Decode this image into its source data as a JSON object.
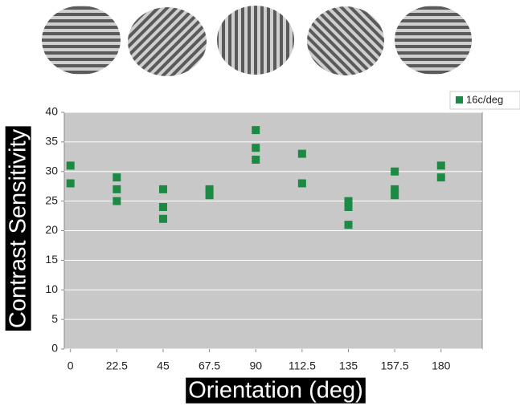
{
  "chart_data": {
    "type": "scatter",
    "xlabel": "Orientation (deg)",
    "ylabel": "Contrast Sensitivity",
    "series": [
      {
        "name": "16c/deg",
        "color": "#1c8a43",
        "x": [
          0,
          0,
          22.5,
          22.5,
          22.5,
          45,
          45,
          45,
          67.5,
          67.5,
          90,
          90,
          90,
          112.5,
          112.5,
          135,
          135,
          135,
          157.5,
          157.5,
          157.5,
          180,
          180
        ],
        "values": [
          31,
          28,
          29,
          27,
          25,
          27,
          24,
          22,
          27,
          26,
          37,
          34,
          32,
          33,
          28,
          25,
          24,
          21,
          30,
          27,
          26,
          31,
          29
        ]
      }
    ],
    "xlim": [
      -3,
      200
    ],
    "ylim": [
      0,
      40
    ],
    "xticks": [
      0,
      22.5,
      45,
      67.5,
      90,
      112.5,
      135,
      157.5,
      180
    ],
    "yticks": [
      0,
      5,
      10,
      15,
      20,
      25,
      30,
      35,
      40
    ],
    "grid": true,
    "legend": "upper right"
  }
}
